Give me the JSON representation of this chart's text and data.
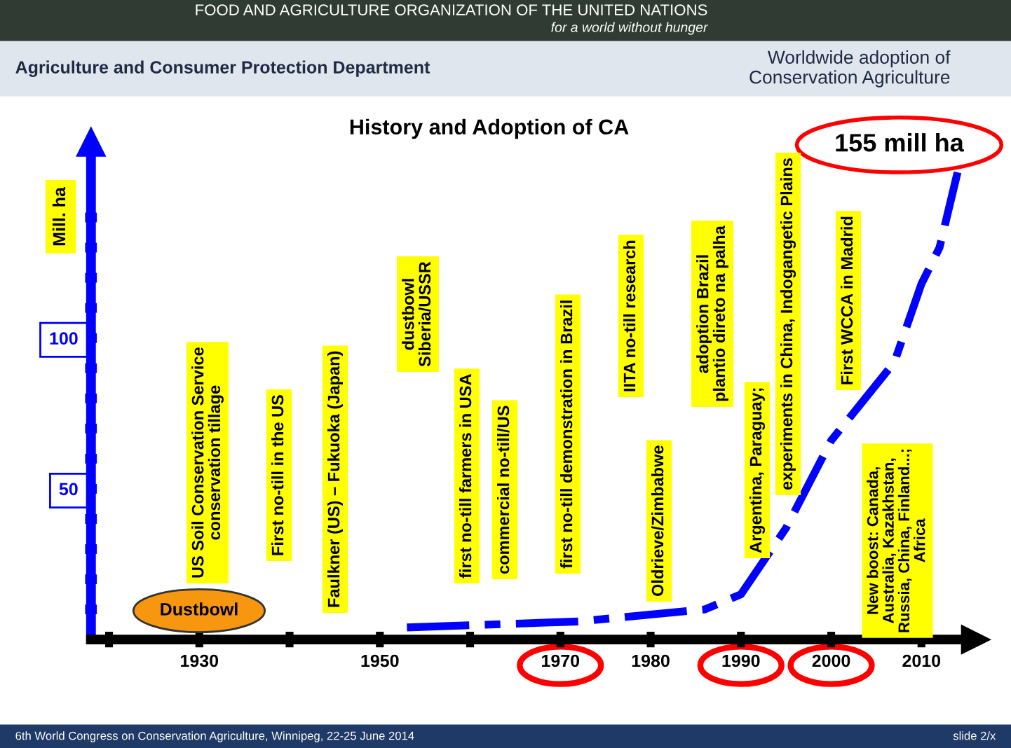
{
  "chart_data": {
    "type": "line",
    "title": "History and Adoption of CA",
    "ylabel": "Mill. ha",
    "x": [
      1953,
      1972,
      1986,
      1990,
      1995,
      2000,
      2007,
      2010,
      2012,
      2014
    ],
    "series": [
      {
        "color": "#0000ff",
        "values": [
          4,
          6,
          10,
          15,
          37,
          66,
          92,
          118,
          130,
          155
        ]
      }
    ],
    "xlim": [
      1918,
      2016
    ],
    "ylim": [
      0,
      165
    ],
    "xticks": [
      {
        "value": 1920,
        "label": null
      },
      1930,
      {
        "value": 1940,
        "label": null
      },
      1950,
      {
        "value": 1960,
        "label": null
      },
      1970,
      1980,
      1990,
      2000,
      2010
    ],
    "yticks": [
      {
        "value": 10,
        "label": null
      },
      {
        "value": 20,
        "label": null
      },
      {
        "value": 30,
        "label": null
      },
      {
        "value": 40,
        "label": null
      },
      50,
      {
        "value": 60,
        "label": null
      },
      {
        "value": 70,
        "label": null
      },
      {
        "value": 80,
        "label": null
      },
      {
        "value": 90,
        "label": null
      },
      100,
      {
        "value": 110,
        "label": null
      },
      {
        "value": 120,
        "label": null
      },
      {
        "value": 130,
        "label": null
      },
      {
        "value": 140,
        "label": null
      }
    ],
    "line_style": "dashed",
    "grid": false,
    "annotations": [
      "FOOD AND AGRICULTURE ORGANIZATION OF THE UNITED NATIONS",
      "for a world without hunger",
      "Agriculture and Consumer Protection Department",
      "Worldwide adoption of\nConservation Agriculture",
      "6th World Congress on Conservation Agriculture, Winnipeg, 22-25 June 2014",
      "slide 2/x",
      {
        "text": "155 mill ha",
        "x": 2014,
        "y": 155
      },
      "Dustbowl",
      "US Soil Conservation Service\nconservation tillage",
      "First no-till in the US",
      "Faulkner (US) – Fukuoka (Japan)",
      "dustbowl\nSiberia/USSR",
      "first no-till farmers in USA",
      "commercial no-till/US",
      "first no-till demonstration in Brazil",
      "IITA no-till research",
      "Oldrieve/Zimbabwe",
      "adoption Brazil\nplantio direto na palha",
      "Argentina, Paraguay;",
      "experiments in China, Indogangetic Plains",
      "First WCCA in Madrid",
      "New boost: Canada,\nAustralia, Kazakhstan,\nRussia, China, Finland...;\nAfrica"
    ]
  }
}
